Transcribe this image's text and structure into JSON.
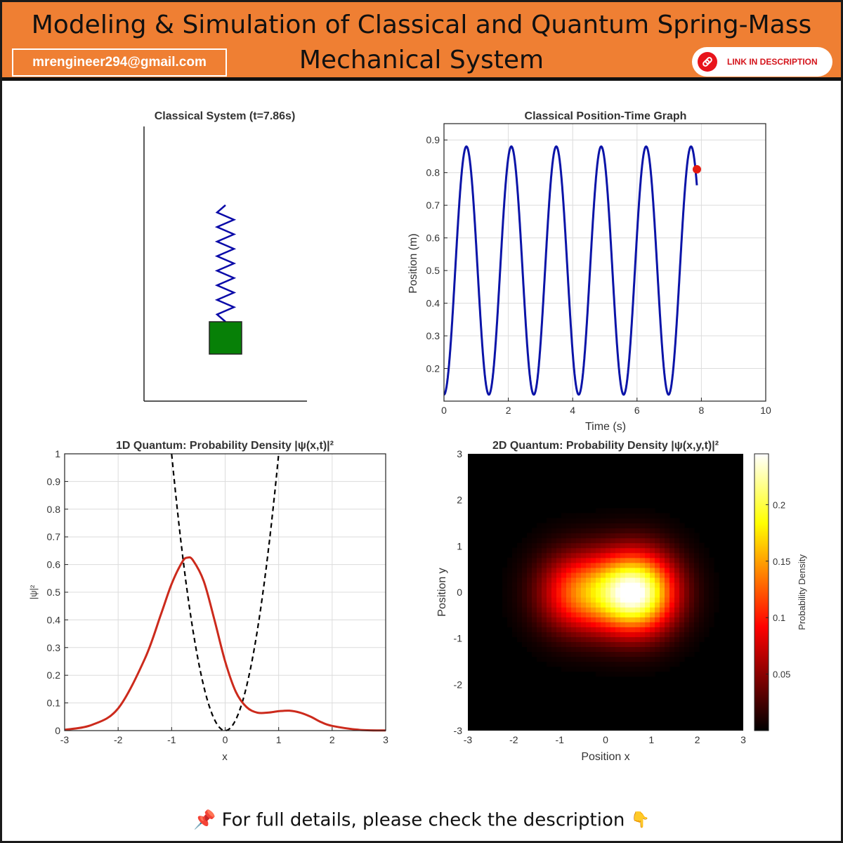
{
  "header": {
    "title_line1": "Modeling & Simulation of Classical and Quantum Spring-Mass",
    "title_line2": "Mechanical System",
    "email": "mrengineer294@gmail.com",
    "link_label": "LINK IN DESCRIPTION",
    "link_icon": "chain-link-icon"
  },
  "footer": {
    "text": "For full details, please check the description",
    "pin_icon": "pushpin-icon",
    "hand_icon": "pointing-down-hand-icon"
  },
  "colors": {
    "header_bg": "#ef7f33",
    "spring": "#0a0aa8",
    "mass": "#078007",
    "classical_line": "#0b14a8",
    "current_point": "#e51a10",
    "density_curve": "#cc2a1c",
    "potential": "#000000"
  },
  "chart_data": [
    {
      "type": "animation-frame",
      "title": "Classical System (t=7.86s)",
      "objects": [
        "spring",
        "mass"
      ]
    },
    {
      "type": "line",
      "title": "Classical Position-Time Graph",
      "xlabel": "Time (s)",
      "ylabel": "Position (m)",
      "xlim": [
        0,
        10
      ],
      "ylim": [
        0.1,
        0.95
      ],
      "xticks": [
        0,
        2,
        4,
        6,
        8,
        10
      ],
      "yticks": [
        0.2,
        0.3,
        0.4,
        0.5,
        0.6,
        0.7,
        0.8,
        0.9
      ],
      "grid": true,
      "series": [
        {
          "function": "0.5 - 0.38*cos(4.5*t)",
          "t_range": [
            0,
            7.86
          ]
        }
      ],
      "current_point": {
        "t": 7.86,
        "y": 0.81
      }
    },
    {
      "type": "line",
      "title": "1D Quantum: Probability Density |ψ(x,t)|²",
      "xlabel": "x",
      "ylabel": "|ψ|²",
      "xlim": [
        -3,
        3
      ],
      "ylim": [
        0,
        1
      ],
      "xticks": [
        -3,
        -2,
        -1,
        0,
        1,
        2,
        3
      ],
      "yticks": [
        0,
        0.1,
        0.2,
        0.3,
        0.4,
        0.5,
        0.6,
        0.7,
        0.8,
        0.9,
        1
      ],
      "grid": true,
      "series": [
        {
          "style": "solid",
          "x": [
            -3,
            -2.5,
            -2,
            -1.5,
            -1.2,
            -1,
            -0.8,
            -0.7,
            -0.6,
            -0.4,
            -0.2,
            0,
            0.2,
            0.4,
            0.6,
            0.8,
            1,
            1.2,
            1.4,
            1.6,
            1.8,
            2,
            2.5,
            3
          ],
          "y": [
            0.003,
            0.02,
            0.08,
            0.26,
            0.42,
            0.53,
            0.61,
            0.625,
            0.615,
            0.54,
            0.4,
            0.25,
            0.14,
            0.085,
            0.065,
            0.065,
            0.07,
            0.072,
            0.065,
            0.05,
            0.03,
            0.017,
            0.003,
            0.0005
          ]
        },
        {
          "style": "dashed",
          "function": "x^2",
          "x_range": [
            -1,
            1
          ]
        }
      ]
    },
    {
      "type": "heatmap",
      "title": "2D Quantum: Probability Density |ψ(x,y,t)|²",
      "xlabel": "Position x",
      "ylabel": "Position y",
      "xlim": [
        -3,
        3
      ],
      "ylim": [
        -3,
        3
      ],
      "xticks": [
        -3,
        -2,
        -1,
        0,
        1,
        2,
        3
      ],
      "yticks": [
        -3,
        -2,
        -1,
        0,
        1,
        2,
        3
      ],
      "colormap": "hot",
      "colorbar": {
        "label": "Probability Density",
        "min": 0,
        "max": 0.245,
        "ticks": [
          0.05,
          0.1,
          0.15,
          0.2
        ]
      },
      "blobs": [
        {
          "x": 0.65,
          "y": 0,
          "peak": 0.245,
          "sigma": 0.6
        },
        {
          "x": -0.6,
          "y": 0,
          "peak": 0.12,
          "sigma": 0.6
        }
      ]
    }
  ]
}
